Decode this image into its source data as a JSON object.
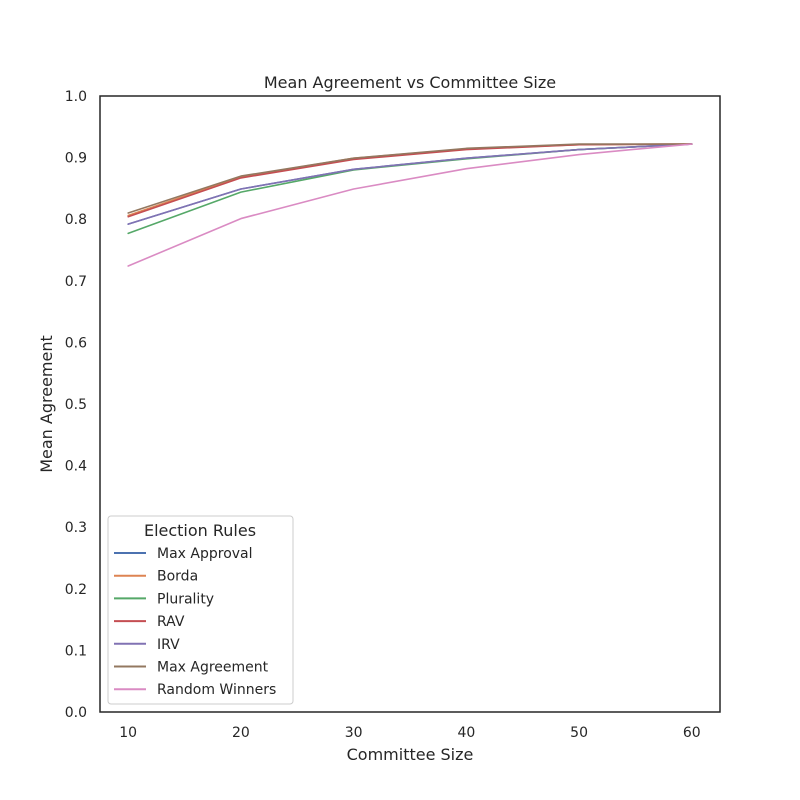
{
  "chart_data": {
    "type": "line",
    "title": "Mean Agreement vs Committee Size",
    "xlabel": "Committee Size",
    "ylabel": "Mean Agreement",
    "x": [
      10,
      20,
      30,
      40,
      50,
      60
    ],
    "xticks": [
      "10",
      "20",
      "30",
      "40",
      "50",
      "60"
    ],
    "yticks": [
      "0.0",
      "0.1",
      "0.2",
      "0.3",
      "0.4",
      "0.5",
      "0.6",
      "0.7",
      "0.8",
      "0.9",
      "1.0"
    ],
    "xlim": [
      7.5,
      62.5
    ],
    "ylim": [
      0,
      1
    ],
    "grid": false,
    "legend": {
      "title": "Election Rules",
      "position": "lower-left"
    },
    "series": [
      {
        "name": "Max Approval",
        "color": "#4c72b0",
        "values": [
          0.792,
          0.849,
          0.881,
          0.899,
          0.913,
          0.922
        ]
      },
      {
        "name": "Borda",
        "color": "#dd8452",
        "values": [
          0.806,
          0.869,
          0.899,
          0.914,
          0.921,
          0.922
        ]
      },
      {
        "name": "Plurality",
        "color": "#55a868",
        "values": [
          0.777,
          0.844,
          0.88,
          0.898,
          0.913,
          0.922
        ]
      },
      {
        "name": "RAV",
        "color": "#c44e52",
        "values": [
          0.804,
          0.867,
          0.897,
          0.913,
          0.921,
          0.922
        ]
      },
      {
        "name": "IRV",
        "color": "#8172b3",
        "values": [
          0.792,
          0.849,
          0.881,
          0.899,
          0.913,
          0.922
        ]
      },
      {
        "name": "Max Agreement",
        "color": "#937860",
        "values": [
          0.81,
          0.87,
          0.899,
          0.915,
          0.922,
          0.922
        ]
      },
      {
        "name": "Random Winners",
        "color": "#da8bc3",
        "values": [
          0.724,
          0.801,
          0.849,
          0.882,
          0.905,
          0.922
        ]
      }
    ]
  }
}
